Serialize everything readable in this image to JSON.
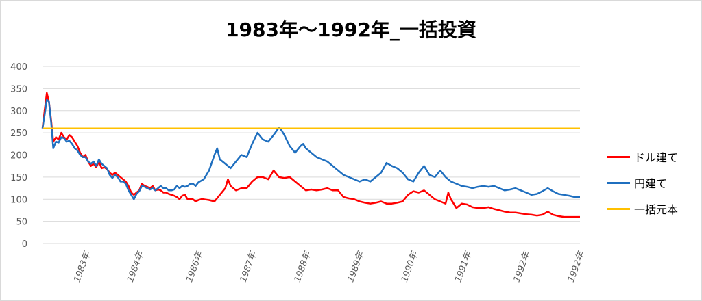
{
  "chart_data": {
    "type": "line",
    "title": "1983年～1992年_一括投資",
    "xlabel": "",
    "ylabel": "",
    "ylim": [
      0,
      400
    ],
    "yticks": [
      0,
      50,
      100,
      150,
      200,
      250,
      300,
      350,
      400
    ],
    "grid": "horizontal",
    "legend_position": "right",
    "x_tick_labels": [
      "1983年",
      "1984年",
      "1986年",
      "1987年",
      "1988年",
      "1989年",
      "1990年",
      "1991年",
      "1992年",
      "1992年"
    ],
    "x_tick_positions": [
      0.081,
      0.18,
      0.29,
      0.39,
      0.491,
      0.59,
      0.69,
      0.79,
      0.899,
      1.0
    ],
    "colors": {
      "dollar": "#ff0000",
      "yen": "#1f6fbf",
      "principal": "#ffc000"
    },
    "series": [
      {
        "name": "ドル建て",
        "points": [
          [
            0,
            260
          ],
          [
            0.004,
            300
          ],
          [
            0.008,
            340
          ],
          [
            0.012,
            320
          ],
          [
            0.016,
            280
          ],
          [
            0.02,
            230
          ],
          [
            0.025,
            240
          ],
          [
            0.03,
            235
          ],
          [
            0.035,
            250
          ],
          [
            0.04,
            240
          ],
          [
            0.045,
            235
          ],
          [
            0.05,
            245
          ],
          [
            0.055,
            240
          ],
          [
            0.06,
            230
          ],
          [
            0.065,
            220
          ],
          [
            0.07,
            205
          ],
          [
            0.075,
            195
          ],
          [
            0.08,
            200
          ],
          [
            0.085,
            185
          ],
          [
            0.09,
            175
          ],
          [
            0.095,
            180
          ],
          [
            0.1,
            172
          ],
          [
            0.105,
            185
          ],
          [
            0.11,
            170
          ],
          [
            0.115,
            172
          ],
          [
            0.12,
            168
          ],
          [
            0.125,
            160
          ],
          [
            0.13,
            155
          ],
          [
            0.135,
            160
          ],
          [
            0.14,
            155
          ],
          [
            0.145,
            150
          ],
          [
            0.15,
            145
          ],
          [
            0.155,
            140
          ],
          [
            0.16,
            130
          ],
          [
            0.165,
            115
          ],
          [
            0.17,
            110
          ],
          [
            0.175,
            115
          ],
          [
            0.18,
            120
          ],
          [
            0.185,
            135
          ],
          [
            0.19,
            130
          ],
          [
            0.195,
            128
          ],
          [
            0.2,
            125
          ],
          [
            0.205,
            130
          ],
          [
            0.21,
            120
          ],
          [
            0.215,
            122
          ],
          [
            0.22,
            120
          ],
          [
            0.225,
            115
          ],
          [
            0.23,
            115
          ],
          [
            0.235,
            112
          ],
          [
            0.24,
            110
          ],
          [
            0.245,
            108
          ],
          [
            0.25,
            105
          ],
          [
            0.255,
            100
          ],
          [
            0.26,
            108
          ],
          [
            0.265,
            110
          ],
          [
            0.27,
            100
          ],
          [
            0.275,
            100
          ],
          [
            0.28,
            100
          ],
          [
            0.285,
            95
          ],
          [
            0.29,
            98
          ],
          [
            0.295,
            100
          ],
          [
            0.3,
            100
          ],
          [
            0.31,
            98
          ],
          [
            0.32,
            95
          ],
          [
            0.33,
            110
          ],
          [
            0.34,
            125
          ],
          [
            0.345,
            145
          ],
          [
            0.35,
            130
          ],
          [
            0.36,
            120
          ],
          [
            0.37,
            125
          ],
          [
            0.38,
            125
          ],
          [
            0.39,
            140
          ],
          [
            0.4,
            150
          ],
          [
            0.41,
            150
          ],
          [
            0.42,
            145
          ],
          [
            0.43,
            165
          ],
          [
            0.44,
            150
          ],
          [
            0.45,
            148
          ],
          [
            0.46,
            150
          ],
          [
            0.47,
            140
          ],
          [
            0.48,
            130
          ],
          [
            0.49,
            120
          ],
          [
            0.5,
            122
          ],
          [
            0.51,
            120
          ],
          [
            0.52,
            122
          ],
          [
            0.53,
            125
          ],
          [
            0.54,
            120
          ],
          [
            0.55,
            120
          ],
          [
            0.56,
            105
          ],
          [
            0.57,
            102
          ],
          [
            0.58,
            100
          ],
          [
            0.59,
            95
          ],
          [
            0.6,
            92
          ],
          [
            0.61,
            90
          ],
          [
            0.62,
            92
          ],
          [
            0.63,
            95
          ],
          [
            0.64,
            90
          ],
          [
            0.65,
            90
          ],
          [
            0.66,
            92
          ],
          [
            0.67,
            95
          ],
          [
            0.68,
            110
          ],
          [
            0.69,
            118
          ],
          [
            0.7,
            115
          ],
          [
            0.71,
            120
          ],
          [
            0.72,
            110
          ],
          [
            0.73,
            100
          ],
          [
            0.74,
            95
          ],
          [
            0.75,
            90
          ],
          [
            0.755,
            115
          ],
          [
            0.76,
            100
          ],
          [
            0.765,
            90
          ],
          [
            0.77,
            80
          ],
          [
            0.775,
            85
          ],
          [
            0.78,
            90
          ],
          [
            0.79,
            88
          ],
          [
            0.8,
            82
          ],
          [
            0.81,
            80
          ],
          [
            0.82,
            80
          ],
          [
            0.83,
            82
          ],
          [
            0.84,
            78
          ],
          [
            0.85,
            75
          ],
          [
            0.86,
            72
          ],
          [
            0.87,
            70
          ],
          [
            0.88,
            70
          ],
          [
            0.89,
            68
          ],
          [
            0.9,
            66
          ],
          [
            0.91,
            65
          ],
          [
            0.92,
            63
          ],
          [
            0.93,
            65
          ],
          [
            0.94,
            72
          ],
          [
            0.95,
            65
          ],
          [
            0.96,
            62
          ],
          [
            0.97,
            60
          ],
          [
            0.98,
            60
          ],
          [
            0.99,
            60
          ],
          [
            1.0,
            60
          ]
        ]
      },
      {
        "name": "円建て",
        "points": [
          [
            0,
            260
          ],
          [
            0.004,
            290
          ],
          [
            0.008,
            325
          ],
          [
            0.012,
            320
          ],
          [
            0.016,
            275
          ],
          [
            0.02,
            215
          ],
          [
            0.025,
            230
          ],
          [
            0.03,
            228
          ],
          [
            0.035,
            240
          ],
          [
            0.04,
            238
          ],
          [
            0.045,
            230
          ],
          [
            0.05,
            232
          ],
          [
            0.055,
            225
          ],
          [
            0.06,
            215
          ],
          [
            0.065,
            210
          ],
          [
            0.07,
            200
          ],
          [
            0.075,
            195
          ],
          [
            0.08,
            195
          ],
          [
            0.085,
            185
          ],
          [
            0.09,
            180
          ],
          [
            0.095,
            185
          ],
          [
            0.1,
            175
          ],
          [
            0.105,
            190
          ],
          [
            0.11,
            180
          ],
          [
            0.115,
            175
          ],
          [
            0.12,
            170
          ],
          [
            0.125,
            155
          ],
          [
            0.13,
            148
          ],
          [
            0.135,
            155
          ],
          [
            0.14,
            150
          ],
          [
            0.145,
            140
          ],
          [
            0.15,
            140
          ],
          [
            0.155,
            135
          ],
          [
            0.16,
            120
          ],
          [
            0.165,
            110
          ],
          [
            0.17,
            100
          ],
          [
            0.175,
            112
          ],
          [
            0.18,
            118
          ],
          [
            0.185,
            130
          ],
          [
            0.19,
            128
          ],
          [
            0.195,
            125
          ],
          [
            0.2,
            122
          ],
          [
            0.205,
            125
          ],
          [
            0.21,
            120
          ],
          [
            0.215,
            125
          ],
          [
            0.22,
            130
          ],
          [
            0.225,
            125
          ],
          [
            0.23,
            125
          ],
          [
            0.235,
            120
          ],
          [
            0.24,
            120
          ],
          [
            0.245,
            122
          ],
          [
            0.25,
            130
          ],
          [
            0.255,
            125
          ],
          [
            0.26,
            130
          ],
          [
            0.265,
            128
          ],
          [
            0.27,
            130
          ],
          [
            0.275,
            135
          ],
          [
            0.28,
            135
          ],
          [
            0.285,
            130
          ],
          [
            0.29,
            138
          ],
          [
            0.3,
            145
          ],
          [
            0.31,
            165
          ],
          [
            0.32,
            200
          ],
          [
            0.325,
            215
          ],
          [
            0.33,
            190
          ],
          [
            0.34,
            180
          ],
          [
            0.35,
            170
          ],
          [
            0.36,
            185
          ],
          [
            0.37,
            200
          ],
          [
            0.38,
            195
          ],
          [
            0.39,
            225
          ],
          [
            0.4,
            250
          ],
          [
            0.41,
            235
          ],
          [
            0.42,
            230
          ],
          [
            0.43,
            245
          ],
          [
            0.44,
            262
          ],
          [
            0.445,
            255
          ],
          [
            0.45,
            245
          ],
          [
            0.46,
            220
          ],
          [
            0.47,
            205
          ],
          [
            0.48,
            220
          ],
          [
            0.485,
            225
          ],
          [
            0.49,
            215
          ],
          [
            0.5,
            205
          ],
          [
            0.51,
            195
          ],
          [
            0.52,
            190
          ],
          [
            0.53,
            185
          ],
          [
            0.54,
            175
          ],
          [
            0.55,
            165
          ],
          [
            0.56,
            155
          ],
          [
            0.57,
            150
          ],
          [
            0.58,
            145
          ],
          [
            0.59,
            140
          ],
          [
            0.6,
            145
          ],
          [
            0.61,
            140
          ],
          [
            0.62,
            150
          ],
          [
            0.63,
            160
          ],
          [
            0.64,
            182
          ],
          [
            0.65,
            175
          ],
          [
            0.66,
            170
          ],
          [
            0.67,
            160
          ],
          [
            0.68,
            145
          ],
          [
            0.69,
            140
          ],
          [
            0.7,
            160
          ],
          [
            0.71,
            175
          ],
          [
            0.72,
            155
          ],
          [
            0.73,
            150
          ],
          [
            0.74,
            165
          ],
          [
            0.75,
            150
          ],
          [
            0.76,
            140
          ],
          [
            0.77,
            135
          ],
          [
            0.78,
            130
          ],
          [
            0.79,
            128
          ],
          [
            0.8,
            125
          ],
          [
            0.81,
            128
          ],
          [
            0.82,
            130
          ],
          [
            0.83,
            128
          ],
          [
            0.84,
            130
          ],
          [
            0.85,
            125
          ],
          [
            0.86,
            120
          ],
          [
            0.87,
            122
          ],
          [
            0.88,
            125
          ],
          [
            0.89,
            120
          ],
          [
            0.9,
            115
          ],
          [
            0.91,
            110
          ],
          [
            0.92,
            112
          ],
          [
            0.93,
            118
          ],
          [
            0.94,
            125
          ],
          [
            0.95,
            118
          ],
          [
            0.96,
            112
          ],
          [
            0.97,
            110
          ],
          [
            0.98,
            108
          ],
          [
            0.99,
            105
          ],
          [
            1.0,
            105
          ]
        ]
      },
      {
        "name": "一括元本",
        "points": [
          [
            0,
            260
          ],
          [
            1.0,
            260
          ]
        ]
      }
    ]
  }
}
